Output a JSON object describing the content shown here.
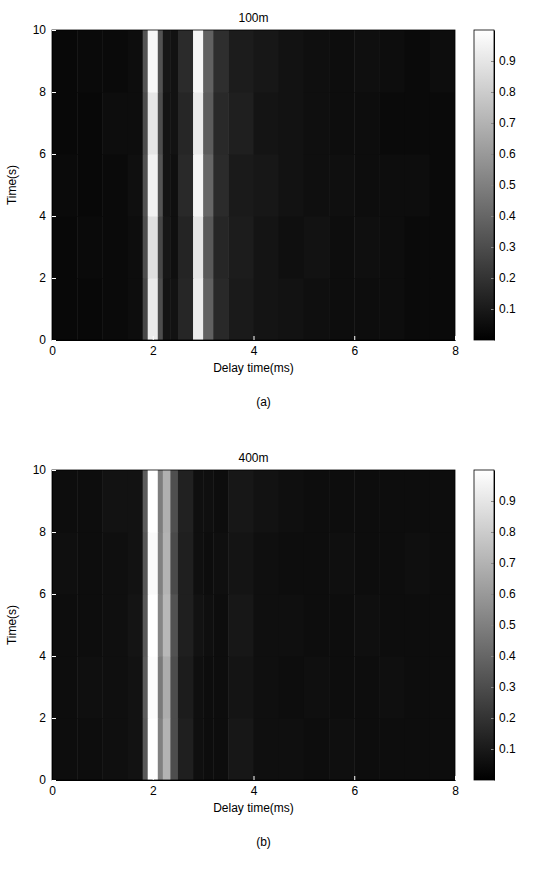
{
  "chart_data": [
    {
      "type": "heatmap",
      "title": "100m",
      "x_label": "Delay time(ms)",
      "y_label": "Time(s)",
      "caption": "(a)",
      "xlim": [
        0,
        8
      ],
      "xticks": [
        0,
        2,
        4,
        6,
        8
      ],
      "ylim": [
        0,
        10
      ],
      "yticks": [
        0,
        2,
        4,
        6,
        8,
        10
      ],
      "x_bins": [
        0,
        0.5,
        1,
        1.5,
        1.8,
        1.9,
        2.1,
        2.2,
        2.35,
        2.5,
        2.8,
        3.0,
        3.2,
        3.5,
        4,
        4.5,
        5,
        5.5,
        6,
        6.5,
        7,
        7.5,
        8
      ],
      "y_bins": [
        0,
        2,
        4,
        6,
        8,
        10
      ],
      "z": [
        [
          0.03,
          0.03,
          0.04,
          0.05,
          0.28,
          0.92,
          0.3,
          0.08,
          0.07,
          0.15,
          0.93,
          0.38,
          0.16,
          0.1,
          0.08,
          0.07,
          0.06,
          0.05,
          0.05,
          0.05,
          0.04,
          0.04
        ],
        [
          0.03,
          0.04,
          0.04,
          0.05,
          0.3,
          0.88,
          0.28,
          0.09,
          0.06,
          0.14,
          0.9,
          0.35,
          0.15,
          0.11,
          0.08,
          0.06,
          0.07,
          0.05,
          0.06,
          0.05,
          0.04,
          0.04
        ],
        [
          0.04,
          0.03,
          0.04,
          0.06,
          0.32,
          0.95,
          0.33,
          0.08,
          0.06,
          0.16,
          0.96,
          0.4,
          0.17,
          0.1,
          0.09,
          0.07,
          0.06,
          0.06,
          0.05,
          0.05,
          0.05,
          0.04
        ],
        [
          0.03,
          0.03,
          0.05,
          0.05,
          0.3,
          0.9,
          0.3,
          0.08,
          0.07,
          0.15,
          0.92,
          0.36,
          0.16,
          0.12,
          0.08,
          0.07,
          0.06,
          0.05,
          0.05,
          0.04,
          0.04,
          0.04
        ],
        [
          0.03,
          0.04,
          0.04,
          0.05,
          0.33,
          0.97,
          0.32,
          0.09,
          0.07,
          0.17,
          0.97,
          0.38,
          0.18,
          0.11,
          0.09,
          0.07,
          0.06,
          0.05,
          0.06,
          0.05,
          0.04,
          0.05
        ]
      ],
      "colorbar": {
        "range": [
          0,
          1
        ],
        "ticks": [
          0.1,
          0.2,
          0.3,
          0.4,
          0.5,
          0.6,
          0.7,
          0.8,
          0.9
        ]
      }
    },
    {
      "type": "heatmap",
      "title": "400m",
      "x_label": "Delay time(ms)",
      "y_label": "Time(s)",
      "caption": "(b)",
      "xlim": [
        0,
        8
      ],
      "xticks": [
        0,
        2,
        4,
        6,
        8
      ],
      "ylim": [
        0,
        10
      ],
      "yticks": [
        0,
        2,
        4,
        6,
        8,
        10
      ],
      "x_bins": [
        0,
        0.5,
        1,
        1.5,
        1.8,
        1.9,
        2.1,
        2.2,
        2.35,
        2.5,
        2.8,
        3.0,
        3.2,
        3.5,
        4,
        4.5,
        5,
        5.5,
        6,
        6.5,
        7,
        7.5,
        8
      ],
      "y_bins": [
        0,
        2,
        4,
        6,
        8,
        10
      ],
      "z": [
        [
          0.05,
          0.05,
          0.06,
          0.07,
          0.35,
          1.0,
          0.5,
          0.7,
          0.3,
          0.12,
          0.06,
          0.05,
          0.05,
          0.09,
          0.06,
          0.06,
          0.05,
          0.06,
          0.05,
          0.05,
          0.05,
          0.05
        ],
        [
          0.05,
          0.06,
          0.06,
          0.07,
          0.36,
          0.99,
          0.48,
          0.68,
          0.3,
          0.11,
          0.06,
          0.05,
          0.05,
          0.08,
          0.06,
          0.05,
          0.06,
          0.05,
          0.05,
          0.06,
          0.05,
          0.05
        ],
        [
          0.05,
          0.05,
          0.06,
          0.08,
          0.35,
          1.0,
          0.52,
          0.72,
          0.32,
          0.12,
          0.07,
          0.06,
          0.05,
          0.09,
          0.06,
          0.06,
          0.05,
          0.05,
          0.06,
          0.05,
          0.05,
          0.05
        ],
        [
          0.06,
          0.05,
          0.06,
          0.07,
          0.34,
          0.98,
          0.5,
          0.7,
          0.29,
          0.12,
          0.06,
          0.05,
          0.06,
          0.08,
          0.06,
          0.05,
          0.05,
          0.06,
          0.05,
          0.05,
          0.06,
          0.05
        ],
        [
          0.05,
          0.05,
          0.07,
          0.07,
          0.36,
          1.0,
          0.49,
          0.69,
          0.31,
          0.13,
          0.06,
          0.06,
          0.05,
          0.09,
          0.07,
          0.06,
          0.05,
          0.05,
          0.05,
          0.05,
          0.05,
          0.05
        ]
      ],
      "colorbar": {
        "range": [
          0,
          1
        ],
        "ticks": [
          0.1,
          0.2,
          0.3,
          0.4,
          0.5,
          0.6,
          0.7,
          0.8,
          0.9
        ]
      }
    }
  ]
}
